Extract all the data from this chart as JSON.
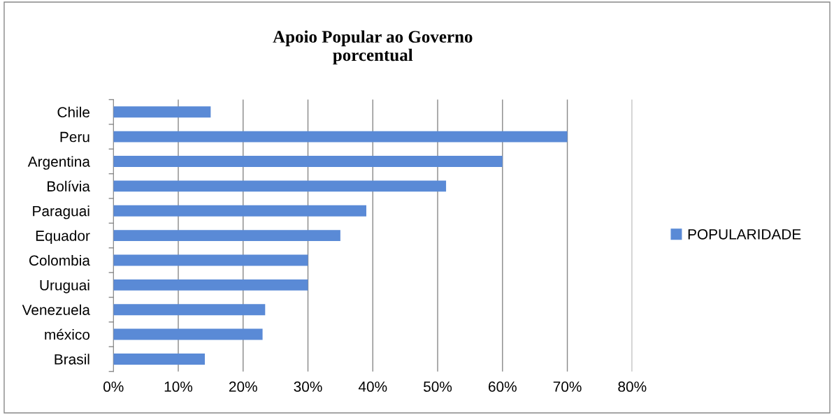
{
  "chart_data": {
    "type": "bar",
    "orientation": "horizontal",
    "title": "Apoio Popular ao Governo\nporcentual",
    "categories": [
      "Chile",
      "Peru",
      "Argentina",
      "Bolívia",
      "Paraguai",
      "Equador",
      "Colombia",
      "Uruguai",
      "Venezuela",
      "méxico",
      "Brasil"
    ],
    "series": [
      {
        "name": "POPULARIDADE",
        "color": "#5a8ad6",
        "values": [
          15,
          70,
          60,
          51.3,
          39,
          35,
          30,
          30,
          23.4,
          23,
          14.1
        ]
      }
    ],
    "xlim": [
      0,
      80
    ],
    "xticks": [
      {
        "value": 0,
        "label": "0%"
      },
      {
        "value": 10,
        "label": "10%"
      },
      {
        "value": 20,
        "label": "20%"
      },
      {
        "value": 30,
        "label": "30%"
      },
      {
        "value": 40,
        "label": "40%"
      },
      {
        "value": 50,
        "label": "50%"
      },
      {
        "value": 60,
        "label": "60%"
      },
      {
        "value": 70,
        "label": "70%"
      },
      {
        "value": 80,
        "label": "80%"
      }
    ],
    "grid": "x",
    "legend": "right"
  }
}
